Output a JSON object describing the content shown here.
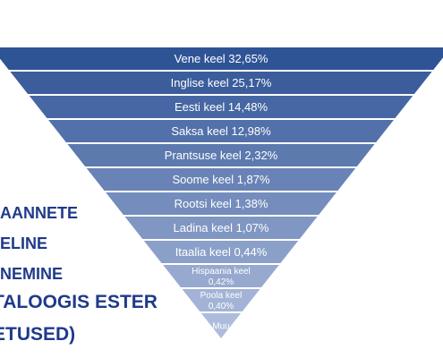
{
  "funnel": {
    "levels": [
      {
        "lines": [
          "Vene keel 32,65%"
        ]
      },
      {
        "lines": [
          "Inglise keel 25,17%"
        ]
      },
      {
        "lines": [
          "Eesti keel 14,48%"
        ]
      },
      {
        "lines": [
          "Saksa keel 12,98%"
        ]
      },
      {
        "lines": [
          "Prantsuse keel 2,32%"
        ]
      },
      {
        "lines": [
          "Soome keel 1,87%"
        ]
      },
      {
        "lines": [
          "Rootsi keel 1,38%"
        ]
      },
      {
        "lines": [
          "Ladina keel 1,07%"
        ]
      },
      {
        "lines": [
          "Itaalia keel 0,44%"
        ]
      },
      {
        "lines": [
          "Hispaania keel",
          "0,42%"
        ]
      },
      {
        "lines": [
          "Poola keel",
          "0,40%"
        ]
      },
      {
        "lines": [
          "Muu"
        ]
      }
    ],
    "colors": {
      "top": "#2f5496",
      "bottom": "#aebcdc",
      "text": "#ffffff"
    }
  },
  "caption": {
    "line1": "AANNETE",
    "line2": "ELINE",
    "line3": "NEMINE",
    "line4": "TALOOGIS ESTER",
    "line5": "ETUSED)"
  }
}
